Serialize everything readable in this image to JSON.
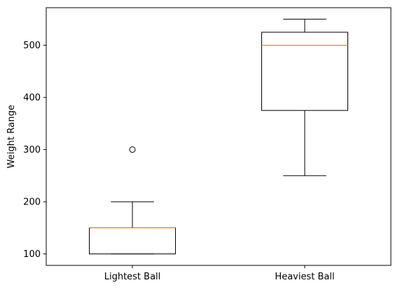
{
  "chart_data": {
    "type": "box",
    "title": "",
    "xlabel": "",
    "ylabel": "Weight Range",
    "ylim": [
      78,
      572
    ],
    "yticks": [
      100,
      200,
      300,
      400,
      500
    ],
    "grid": false,
    "categories": [
      "Lightest Ball",
      "Heaviest Ball"
    ],
    "boxes": [
      {
        "category": "Lightest Ball",
        "whisker_low": 100,
        "q1": 100,
        "median": 150,
        "q3": 150,
        "whisker_high": 200,
        "outliers": [
          300
        ]
      },
      {
        "category": "Heaviest Ball",
        "whisker_low": 250,
        "q1": 375,
        "median": 500,
        "q3": 525,
        "whisker_high": 550,
        "outliers": []
      }
    ],
    "colors": {
      "box": "#000000",
      "median": "#ff7f0e",
      "outlier": "#000000"
    }
  }
}
